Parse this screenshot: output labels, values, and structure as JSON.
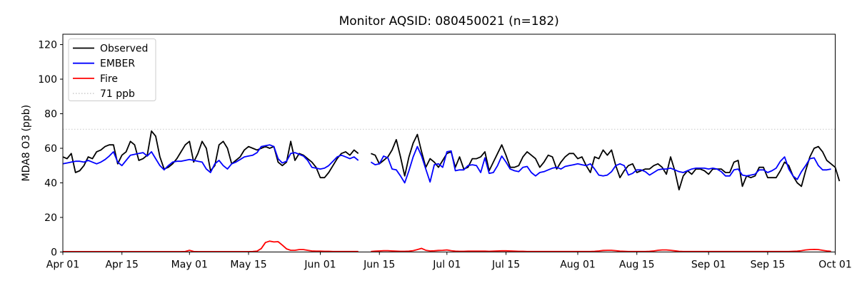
{
  "figure": {
    "title": "Monitor AQSID: 080450021 (n=182)",
    "ylabel": "MDA8 O3 (ppb)"
  },
  "chart_data": {
    "type": "line",
    "title": "Monitor AQSID: 080450021 (n=182)",
    "xlabel": "",
    "ylabel": "MDA8 O3 (ppb)",
    "ylim": [
      0,
      126
    ],
    "grid": false,
    "x_unit": "daily values; index 0 = Apr 01, last index = Oct 01; null = missing days (Jun 11-12, series end)",
    "x_ticks": [
      {
        "label": "Apr 01",
        "day": 0
      },
      {
        "label": "Apr 15",
        "day": 14
      },
      {
        "label": "May 01",
        "day": 30
      },
      {
        "label": "May 15",
        "day": 44
      },
      {
        "label": "Jun 01",
        "day": 61
      },
      {
        "label": "Jun 15",
        "day": 75
      },
      {
        "label": "Jul 01",
        "day": 91
      },
      {
        "label": "Jul 15",
        "day": 105
      },
      {
        "label": "Aug 01",
        "day": 122
      },
      {
        "label": "Aug 15",
        "day": 136
      },
      {
        "label": "Sep 01",
        "day": 153
      },
      {
        "label": "Sep 15",
        "day": 167
      },
      {
        "label": "Oct 01",
        "day": 183
      }
    ],
    "y_ticks": [
      0,
      20,
      40,
      60,
      80,
      100,
      120
    ],
    "threshold": {
      "label": "71 ppb",
      "value": 71,
      "color": "#d3d3d3",
      "style": "dotted"
    },
    "legend": {
      "position": "upper-left",
      "entries": [
        {
          "label": "Observed",
          "color": "#000000",
          "style": "solid"
        },
        {
          "label": "EMBER",
          "color": "#0000ff",
          "style": "solid"
        },
        {
          "label": "Fire",
          "color": "#ff0000",
          "style": "solid"
        },
        {
          "label": "71 ppb",
          "color": "#d3d3d3",
          "style": "dotted"
        }
      ]
    },
    "series": [
      {
        "name": "Observed",
        "color": "#000000",
        "values": [
          55,
          54,
          57,
          46,
          47,
          50,
          55,
          54,
          58,
          59,
          61,
          62,
          62,
          51,
          56,
          58,
          64,
          62,
          53,
          54,
          56,
          70,
          67,
          55,
          48,
          49,
          51,
          54,
          58,
          62,
          64,
          52,
          57,
          64,
          60,
          47,
          50,
          62,
          64,
          60,
          51,
          53,
          55,
          59,
          61,
          60,
          59,
          60,
          61,
          60,
          61,
          52,
          50,
          52,
          64,
          53,
          57,
          56,
          54,
          52,
          49,
          43,
          43,
          46,
          50,
          54,
          57,
          58,
          56,
          59,
          57,
          null,
          null,
          57,
          56,
          51,
          53,
          55,
          59,
          65,
          55,
          44,
          55,
          63,
          68,
          58,
          49,
          54,
          52,
          49,
          53,
          57,
          58,
          49,
          55,
          48,
          49,
          54,
          54,
          55,
          58,
          47,
          52,
          57,
          62,
          56,
          49,
          49,
          50,
          55,
          58,
          56,
          54,
          49,
          52,
          56,
          55,
          48,
          52,
          55,
          57,
          57,
          54,
          55,
          50,
          46,
          55,
          54,
          59,
          56,
          59,
          50,
          43,
          47,
          50,
          51,
          46,
          47,
          48,
          48,
          50,
          51,
          49,
          45,
          55,
          47,
          36,
          44,
          47,
          45,
          48,
          48,
          47,
          45,
          48,
          48,
          48,
          46,
          46,
          52,
          53,
          38,
          44,
          43,
          44,
          49,
          49,
          43,
          43,
          43,
          47,
          52,
          50,
          44,
          40,
          38,
          47,
          55,
          60,
          61,
          58,
          53,
          51,
          49,
          41
        ]
      },
      {
        "name": "EMBER",
        "color": "#0000ff",
        "values": [
          51,
          51.5,
          52,
          52.5,
          52.5,
          52,
          53,
          52,
          51,
          52,
          53.5,
          55.5,
          58,
          52,
          50,
          53,
          56,
          56.5,
          57,
          57.5,
          55.5,
          58,
          54,
          50,
          47.5,
          50,
          52,
          52.5,
          52.5,
          53,
          53.5,
          53,
          52.5,
          52,
          48,
          46,
          51,
          53,
          50,
          48,
          51,
          52,
          53.5,
          55,
          55.5,
          56,
          57.5,
          61,
          61.5,
          62,
          61,
          54,
          51.5,
          52.5,
          57,
          57.5,
          56.5,
          55.5,
          53,
          49,
          48.5,
          48,
          48.5,
          50,
          52.5,
          55,
          56,
          55,
          54,
          55,
          53,
          null,
          null,
          52,
          50.5,
          51,
          55.5,
          54.5,
          48,
          47.5,
          44,
          40,
          47,
          55,
          61,
          55.5,
          48,
          40.5,
          50.5,
          51,
          49,
          58,
          58.5,
          47,
          47.5,
          47.5,
          50,
          50.5,
          50,
          46,
          54.5,
          45.5,
          46,
          50,
          55.5,
          52,
          48,
          47,
          46.5,
          49,
          49.5,
          46,
          44,
          46,
          46.5,
          47.5,
          48.5,
          49,
          48,
          49.5,
          50,
          50.5,
          51,
          50.5,
          50,
          51,
          48,
          44.5,
          44,
          44.5,
          46.5,
          50,
          51,
          50,
          44.5,
          45.5,
          47.5,
          47.5,
          46.5,
          44.5,
          46,
          47.5,
          48,
          48,
          48.5,
          47.5,
          46.5,
          46,
          47,
          48,
          48.5,
          48.5,
          48.5,
          48,
          48.5,
          48,
          46.5,
          44,
          44,
          47.5,
          48,
          44.5,
          44,
          44.5,
          45,
          47.5,
          47.5,
          46,
          47,
          48.5,
          52.5,
          55,
          48,
          44,
          42,
          46.5,
          50,
          54,
          54.5,
          50,
          47.5,
          47.5,
          48,
          null
        ]
      },
      {
        "name": "Fire",
        "color": "#ff0000",
        "values": [
          0.2,
          0.2,
          0.2,
          0.2,
          0.2,
          0.2,
          0.2,
          0.2,
          0.2,
          0.2,
          0.2,
          0.2,
          0.2,
          0.2,
          0.2,
          0.2,
          0.2,
          0.2,
          0.2,
          0.2,
          0.2,
          0.2,
          0.2,
          0.2,
          0.2,
          0.2,
          0.2,
          0.2,
          0.2,
          0.3,
          1,
          0.3,
          0.2,
          0.2,
          0.2,
          0.2,
          0.2,
          0.2,
          0.2,
          0.2,
          0.2,
          0.2,
          0.2,
          0.2,
          0.2,
          0.3,
          0.5,
          2,
          5.5,
          6.3,
          5.8,
          6,
          4,
          1.8,
          1,
          1,
          1.4,
          1.4,
          1,
          0.6,
          0.5,
          0.5,
          0.4,
          0.4,
          0.3,
          0.3,
          0.3,
          0.3,
          0.3,
          0.3,
          0.3,
          null,
          null,
          0.3,
          0.5,
          0.6,
          0.8,
          0.8,
          0.6,
          0.5,
          0.4,
          0.4,
          0.5,
          0.8,
          1.4,
          2.1,
          1,
          0.6,
          0.7,
          0.9,
          1,
          1.2,
          0.8,
          0.5,
          0.4,
          0.4,
          0.5,
          0.5,
          0.5,
          0.5,
          0.5,
          0.4,
          0.5,
          0.6,
          0.7,
          0.7,
          0.6,
          0.5,
          0.4,
          0.4,
          0.3,
          0.3,
          0.3,
          0.3,
          0.3,
          0.3,
          0.3,
          0.3,
          0.3,
          0.3,
          0.3,
          0.3,
          0.3,
          0.3,
          0.3,
          0.3,
          0.4,
          0.6,
          0.9,
          1,
          1,
          0.8,
          0.5,
          0.4,
          0.3,
          0.3,
          0.3,
          0.3,
          0.3,
          0.4,
          0.6,
          1,
          1.2,
          1.2,
          1,
          0.7,
          0.4,
          0.3,
          0.3,
          0.3,
          0.3,
          0.3,
          0.3,
          0.3,
          0.3,
          0.3,
          0.3,
          0.3,
          0.3,
          0.3,
          0.3,
          0.3,
          0.3,
          0.3,
          0.3,
          0.3,
          0.3,
          0.3,
          0.3,
          0.3,
          0.3,
          0.3,
          0.3,
          0.4,
          0.5,
          0.8,
          1.2,
          1.4,
          1.5,
          1.4,
          1,
          0.6,
          0.4,
          null
        ]
      }
    ]
  }
}
